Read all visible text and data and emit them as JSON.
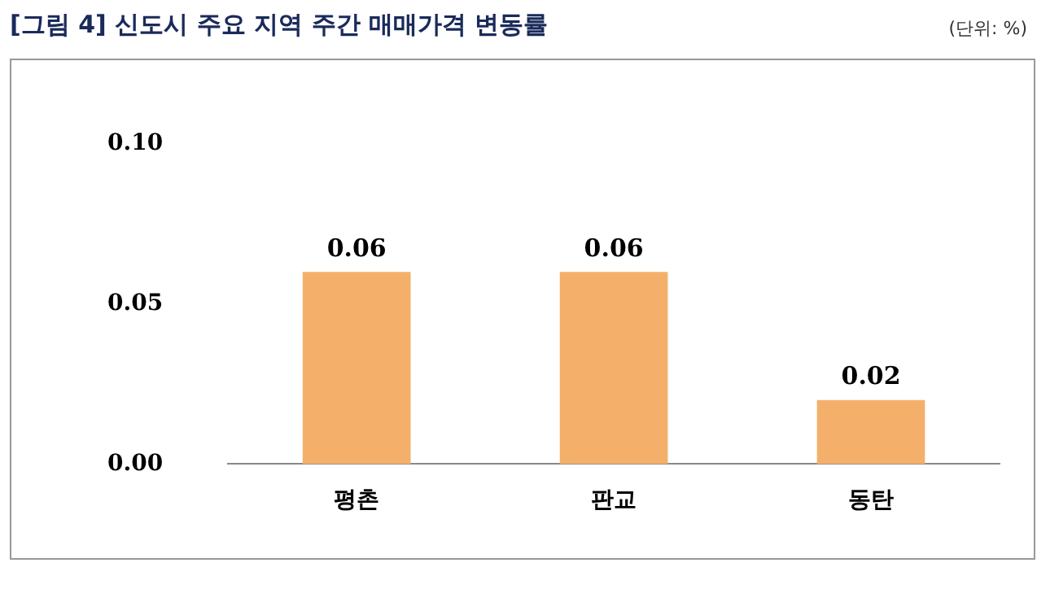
{
  "chart_data": {
    "type": "bar",
    "title": "[그림 4] 신도시 주요 지역 주간 매매가격 변동률",
    "annotations": [
      "(단위: %)"
    ],
    "categories": [
      "평촌",
      "판교",
      "동탄"
    ],
    "values": [
      0.06,
      0.06,
      0.02
    ],
    "color": "#f4b06b",
    "ylim": [
      0,
      0.1
    ],
    "yticks": [
      {
        "value": 0,
        "label": "0.00"
      },
      0.05,
      {
        "value": 0.1,
        "label": "0.10"
      }
    ],
    "grid": false,
    "legend": false,
    "data_labels": true
  }
}
